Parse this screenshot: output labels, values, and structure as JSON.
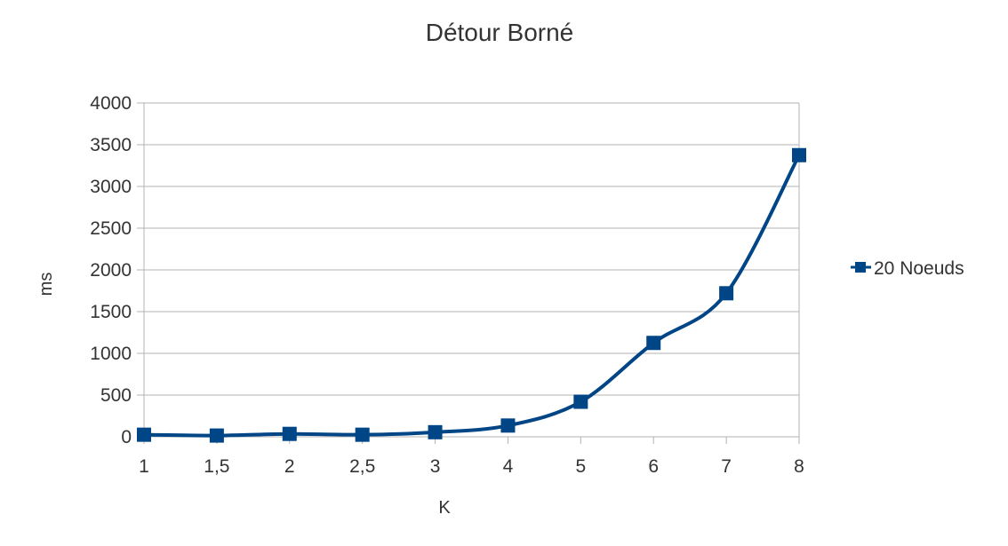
{
  "chart_data": {
    "type": "line",
    "title": "Détour Borné",
    "xlabel": "K",
    "ylabel": "ms",
    "categories": [
      "1",
      "1,5",
      "2",
      "2,5",
      "3",
      "4",
      "5",
      "6",
      "7",
      "8"
    ],
    "series": [
      {
        "name": "20 Noeuds",
        "values": [
          25,
          15,
          35,
          25,
          55,
          135,
          420,
          1125,
          1720,
          3375
        ],
        "color": "#004586"
      }
    ],
    "ylim": [
      0,
      4000
    ],
    "yticks": [
      0,
      500,
      1000,
      1500,
      2000,
      2500,
      3000,
      3500,
      4000
    ],
    "grid": true,
    "legend_position": "right",
    "smoothed": true,
    "marker": "square"
  }
}
